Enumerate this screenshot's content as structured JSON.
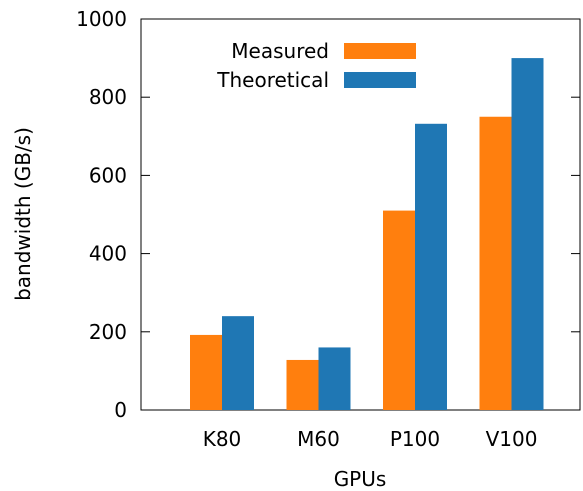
{
  "chart_data": {
    "type": "bar",
    "categories": [
      "K80",
      "M60",
      "P100",
      "V100"
    ],
    "series": [
      {
        "name": "Measured",
        "values": [
          192,
          128,
          510,
          750
        ],
        "color": "#ff7f0e"
      },
      {
        "name": "Theoretical",
        "values": [
          240,
          160,
          732,
          900
        ],
        "color": "#1f77b4"
      }
    ],
    "xlabel": "GPUs",
    "ylabel": "bandwidth (GB/s)",
    "ylim": [
      0,
      1000
    ],
    "yticks": [
      0,
      200,
      400,
      600,
      800,
      1000
    ],
    "grid": false,
    "legend_position": "top-left"
  }
}
